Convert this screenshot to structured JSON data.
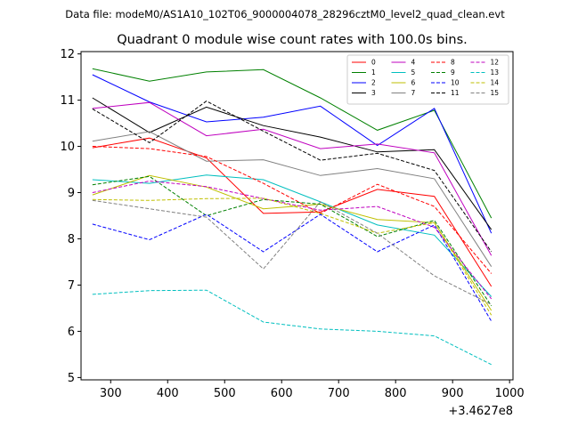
{
  "header": {
    "data_file": "Data file: modeM0/AS1A10_102T06_9000004078_28296cztM0_level2_quad_clean.evt"
  },
  "chart_data": {
    "type": "line",
    "title": "Quadrant 0 module wise count rates with 100.0s bins.",
    "xlabel": "",
    "ylabel": "",
    "offset_label": "+3.4627e8",
    "xlim": [
      248,
      1006
    ],
    "ylim": [
      4.95,
      12.05
    ],
    "xticks": [
      300,
      400,
      500,
      600,
      700,
      800,
      900,
      1000
    ],
    "yticks": [
      5,
      6,
      7,
      8,
      9,
      10,
      11,
      12
    ],
    "grid": false,
    "legend_position": "top-right",
    "x": [
      268,
      368,
      468,
      568,
      668,
      768,
      868,
      968
    ],
    "series": [
      {
        "name": "0",
        "color": "#ff0000",
        "dash": "solid",
        "values": [
          9.97,
          10.18,
          9.75,
          8.55,
          8.58,
          9.07,
          8.92,
          6.97
        ]
      },
      {
        "name": "1",
        "color": "#008000",
        "dash": "solid",
        "values": [
          11.68,
          11.41,
          11.61,
          11.66,
          11.05,
          10.35,
          10.78,
          8.45
        ]
      },
      {
        "name": "2",
        "color": "#0000ff",
        "dash": "solid",
        "values": [
          11.55,
          10.96,
          10.53,
          10.63,
          10.87,
          10.02,
          10.82,
          8.12
        ]
      },
      {
        "name": "3",
        "color": "#000000",
        "dash": "solid",
        "values": [
          11.05,
          10.3,
          10.85,
          10.45,
          10.2,
          9.88,
          9.93,
          8.2
        ]
      },
      {
        "name": "4",
        "color": "#bf00bf",
        "dash": "solid",
        "values": [
          10.82,
          10.95,
          10.23,
          10.37,
          9.95,
          10.05,
          9.86,
          7.64
        ]
      },
      {
        "name": "5",
        "color": "#00bfbf",
        "dash": "solid",
        "values": [
          9.28,
          9.2,
          9.38,
          9.28,
          8.8,
          8.3,
          8.08,
          6.75
        ]
      },
      {
        "name": "6",
        "color": "#bfbf00",
        "dash": "solid",
        "values": [
          8.95,
          9.37,
          9.12,
          8.65,
          8.75,
          8.42,
          8.35,
          6.45
        ]
      },
      {
        "name": "7",
        "color": "#808080",
        "dash": "solid",
        "values": [
          10.11,
          10.32,
          9.68,
          9.71,
          9.37,
          9.52,
          9.3,
          7.4
        ]
      },
      {
        "name": "8",
        "color": "#ff0000",
        "dash": "dashed",
        "values": [
          10.0,
          9.95,
          9.78,
          9.2,
          8.55,
          9.18,
          8.7,
          7.25
        ]
      },
      {
        "name": "9",
        "color": "#008000",
        "dash": "dashed",
        "values": [
          9.17,
          9.35,
          8.5,
          8.85,
          8.75,
          8.05,
          8.4,
          6.55
        ]
      },
      {
        "name": "10",
        "color": "#0000ff",
        "dash": "dashed",
        "values": [
          8.32,
          7.98,
          8.53,
          7.72,
          8.53,
          7.72,
          8.3,
          6.22
        ]
      },
      {
        "name": "11",
        "color": "#000000",
        "dash": "dashed",
        "values": [
          10.81,
          10.08,
          10.98,
          10.33,
          9.7,
          9.85,
          9.48,
          7.72
        ]
      },
      {
        "name": "12",
        "color": "#bf00bf",
        "dash": "dashed",
        "values": [
          9.0,
          9.25,
          9.13,
          8.87,
          8.62,
          8.7,
          8.25,
          6.7
        ]
      },
      {
        "name": "13",
        "color": "#00bfbf",
        "dash": "dashed",
        "values": [
          6.8,
          6.88,
          6.89,
          6.2,
          6.05,
          6.0,
          5.9,
          5.28
        ]
      },
      {
        "name": "14",
        "color": "#bfbf00",
        "dash": "dashed",
        "values": [
          8.85,
          8.83,
          8.87,
          8.88,
          8.55,
          8.12,
          8.35,
          6.35
        ]
      },
      {
        "name": "15",
        "color": "#808080",
        "dash": "dashed",
        "values": [
          8.83,
          8.65,
          8.47,
          7.35,
          8.8,
          8.12,
          7.2,
          6.58
        ]
      }
    ]
  }
}
